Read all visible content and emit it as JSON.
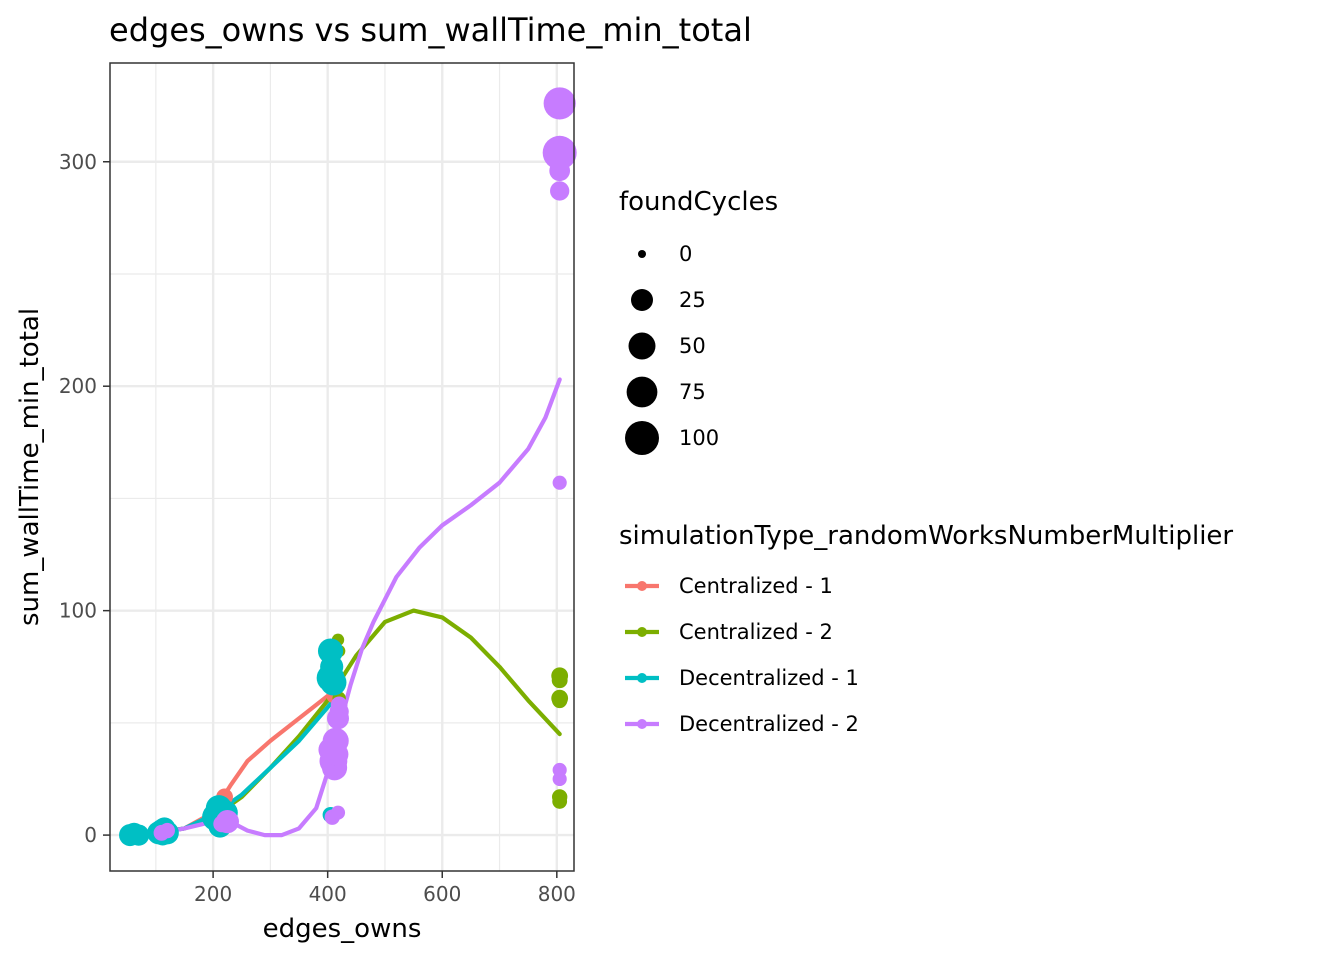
{
  "chart_data": {
    "type": "scatter",
    "title": "edges_owns  vs  sum_wallTime_min_total",
    "xlabel": "edges_owns",
    "ylabel": "sum_wallTime_min_total",
    "xlim": [
      20,
      830
    ],
    "ylim": [
      -16,
      344
    ],
    "x_ticks": [
      200,
      400,
      600,
      800
    ],
    "y_ticks": [
      0,
      100,
      200,
      300
    ],
    "grid": true,
    "legend_placement": "right",
    "size_legend": {
      "title": "foundCycles",
      "values": [
        0,
        25,
        50,
        75,
        100
      ]
    },
    "color_legend": {
      "title": "simulationType_randomWorksNumberMultiplier"
    },
    "series": [
      {
        "name": "Centralized - 1",
        "color": "#F8766D",
        "points": [
          {
            "x": 100,
            "y": 1,
            "s": 2
          },
          {
            "x": 105,
            "y": 0,
            "s": 1
          },
          {
            "x": 220,
            "y": 17,
            "s": 8
          },
          {
            "x": 215,
            "y": 14,
            "s": 6
          },
          {
            "x": 218,
            "y": 8,
            "s": 4
          },
          {
            "x": 405,
            "y": 81,
            "s": 2
          },
          {
            "x": 408,
            "y": 66,
            "s": 4
          },
          {
            "x": 410,
            "y": 62,
            "s": 3
          }
        ],
        "smooth": [
          [
            100,
            1
          ],
          [
            150,
            3
          ],
          [
            200,
            10
          ],
          [
            230,
            22
          ],
          [
            260,
            33
          ],
          [
            300,
            42
          ],
          [
            350,
            52
          ],
          [
            400,
            62
          ],
          [
            410,
            64
          ]
        ]
      },
      {
        "name": "Centralized - 2",
        "color": "#7CAE00",
        "points": [
          {
            "x": 110,
            "y": 1,
            "s": 1
          },
          {
            "x": 120,
            "y": 2,
            "s": 1
          },
          {
            "x": 215,
            "y": 6,
            "s": 2
          },
          {
            "x": 220,
            "y": 10,
            "s": 3
          },
          {
            "x": 418,
            "y": 87,
            "s": 1
          },
          {
            "x": 420,
            "y": 82,
            "s": 1
          },
          {
            "x": 420,
            "y": 61,
            "s": 2
          },
          {
            "x": 418,
            "y": 58,
            "s": 1
          },
          {
            "x": 805,
            "y": 71,
            "s": 8
          },
          {
            "x": 805,
            "y": 69,
            "s": 6
          },
          {
            "x": 805,
            "y": 61,
            "s": 8
          },
          {
            "x": 805,
            "y": 60,
            "s": 5
          },
          {
            "x": 805,
            "y": 17,
            "s": 5
          },
          {
            "x": 805,
            "y": 15,
            "s": 4
          }
        ],
        "smooth": [
          [
            60,
            0
          ],
          [
            100,
            1
          ],
          [
            150,
            3
          ],
          [
            200,
            8
          ],
          [
            250,
            17
          ],
          [
            300,
            30
          ],
          [
            350,
            44
          ],
          [
            400,
            60
          ],
          [
            450,
            80
          ],
          [
            500,
            95
          ],
          [
            550,
            100
          ],
          [
            600,
            97
          ],
          [
            650,
            88
          ],
          [
            700,
            75
          ],
          [
            750,
            60
          ],
          [
            805,
            45
          ]
        ]
      },
      {
        "name": "Decentralized - 1",
        "color": "#00BFC4",
        "points": [
          {
            "x": 55,
            "y": 0,
            "s": 25
          },
          {
            "x": 62,
            "y": 1,
            "s": 18
          },
          {
            "x": 70,
            "y": 0,
            "s": 22
          },
          {
            "x": 105,
            "y": 1,
            "s": 30
          },
          {
            "x": 110,
            "y": 2,
            "s": 28
          },
          {
            "x": 115,
            "y": 3,
            "s": 25
          },
          {
            "x": 120,
            "y": 1,
            "s": 30
          },
          {
            "x": 112,
            "y": 0,
            "s": 20
          },
          {
            "x": 205,
            "y": 8,
            "s": 55
          },
          {
            "x": 210,
            "y": 12,
            "s": 45
          },
          {
            "x": 212,
            "y": 4,
            "s": 30
          },
          {
            "x": 218,
            "y": 6,
            "s": 40
          },
          {
            "x": 222,
            "y": 10,
            "s": 35
          },
          {
            "x": 405,
            "y": 82,
            "s": 40
          },
          {
            "x": 407,
            "y": 75,
            "s": 30
          },
          {
            "x": 405,
            "y": 70,
            "s": 55
          },
          {
            "x": 410,
            "y": 68,
            "s": 45
          },
          {
            "x": 408,
            "y": 35,
            "s": 20
          },
          {
            "x": 405,
            "y": 9,
            "s": 6
          }
        ],
        "smooth": [
          [
            55,
            -1
          ],
          [
            80,
            0
          ],
          [
            100,
            1
          ],
          [
            150,
            3
          ],
          [
            200,
            9
          ],
          [
            250,
            18
          ],
          [
            300,
            30
          ],
          [
            350,
            42
          ],
          [
            400,
            57
          ],
          [
            410,
            60
          ]
        ]
      },
      {
        "name": "Decentralized - 2",
        "color": "#C77CFF",
        "points": [
          {
            "x": 110,
            "y": 1,
            "s": 6
          },
          {
            "x": 120,
            "y": 2,
            "s": 5
          },
          {
            "x": 215,
            "y": 5,
            "s": 8
          },
          {
            "x": 225,
            "y": 6,
            "s": 30
          },
          {
            "x": 405,
            "y": 38,
            "s": 35
          },
          {
            "x": 410,
            "y": 33,
            "s": 55
          },
          {
            "x": 412,
            "y": 30,
            "s": 40
          },
          {
            "x": 414,
            "y": 42,
            "s": 45
          },
          {
            "x": 416,
            "y": 36,
            "s": 30
          },
          {
            "x": 418,
            "y": 52,
            "s": 25
          },
          {
            "x": 420,
            "y": 55,
            "s": 15
          },
          {
            "x": 420,
            "y": 58,
            "s": 8
          },
          {
            "x": 408,
            "y": 8,
            "s": 5
          },
          {
            "x": 418,
            "y": 10,
            "s": 3
          },
          {
            "x": 805,
            "y": 326,
            "s": 85
          },
          {
            "x": 805,
            "y": 304,
            "s": 100
          },
          {
            "x": 805,
            "y": 296,
            "s": 20
          },
          {
            "x": 805,
            "y": 287,
            "s": 15
          },
          {
            "x": 805,
            "y": 157,
            "s": 3
          },
          {
            "x": 805,
            "y": 29,
            "s": 3
          },
          {
            "x": 805,
            "y": 25,
            "s": 3
          }
        ],
        "smooth": [
          [
            108,
            1
          ],
          [
            150,
            3
          ],
          [
            200,
            6
          ],
          [
            230,
            6
          ],
          [
            260,
            2
          ],
          [
            290,
            0
          ],
          [
            320,
            0
          ],
          [
            350,
            3
          ],
          [
            380,
            12
          ],
          [
            400,
            28
          ],
          [
            420,
            48
          ],
          [
            440,
            67
          ],
          [
            460,
            83
          ],
          [
            480,
            95
          ],
          [
            520,
            115
          ],
          [
            560,
            128
          ],
          [
            600,
            138
          ],
          [
            650,
            147
          ],
          [
            700,
            157
          ],
          [
            750,
            172
          ],
          [
            780,
            186
          ],
          [
            805,
            203
          ]
        ]
      }
    ]
  }
}
